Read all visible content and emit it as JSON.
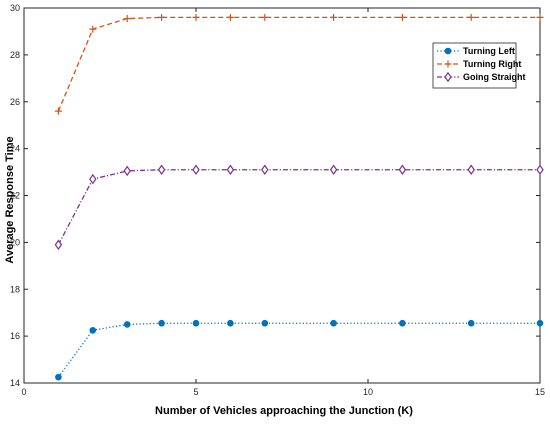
{
  "chart_data": {
    "type": "line",
    "title": "",
    "xlabel": "Number of Vehicles approaching the Junction  (K)",
    "ylabel": "Average Response Time",
    "xlim": [
      0,
      15
    ],
    "ylim": [
      14,
      30
    ],
    "xticks": [
      0,
      5,
      10,
      15
    ],
    "yticks": [
      14,
      16,
      18,
      20,
      22,
      24,
      26,
      28,
      30
    ],
    "grid": false,
    "legend_position": "top-right",
    "x": [
      1,
      2,
      3,
      4,
      5,
      6,
      7,
      9,
      11,
      13,
      15
    ],
    "series": [
      {
        "name": "Turning Left",
        "color": "#0072BD",
        "line_style": "dotted",
        "marker": "circle",
        "values": [
          14.25,
          16.25,
          16.5,
          16.55,
          16.55,
          16.55,
          16.55,
          16.55,
          16.55,
          16.55,
          16.55
        ]
      },
      {
        "name": "Turning Right",
        "color": "#D95319",
        "line_style": "dashed",
        "marker": "plus",
        "values": [
          25.6,
          29.1,
          29.55,
          29.6,
          29.6,
          29.6,
          29.6,
          29.6,
          29.6,
          29.6,
          29.6
        ]
      },
      {
        "name": "Going Straight",
        "color": "#7E2F8E",
        "line_style": "dash-dot",
        "marker": "diamond",
        "values": [
          19.9,
          22.7,
          23.05,
          23.1,
          23.1,
          23.1,
          23.1,
          23.1,
          23.1,
          23.1,
          23.1
        ]
      }
    ]
  }
}
